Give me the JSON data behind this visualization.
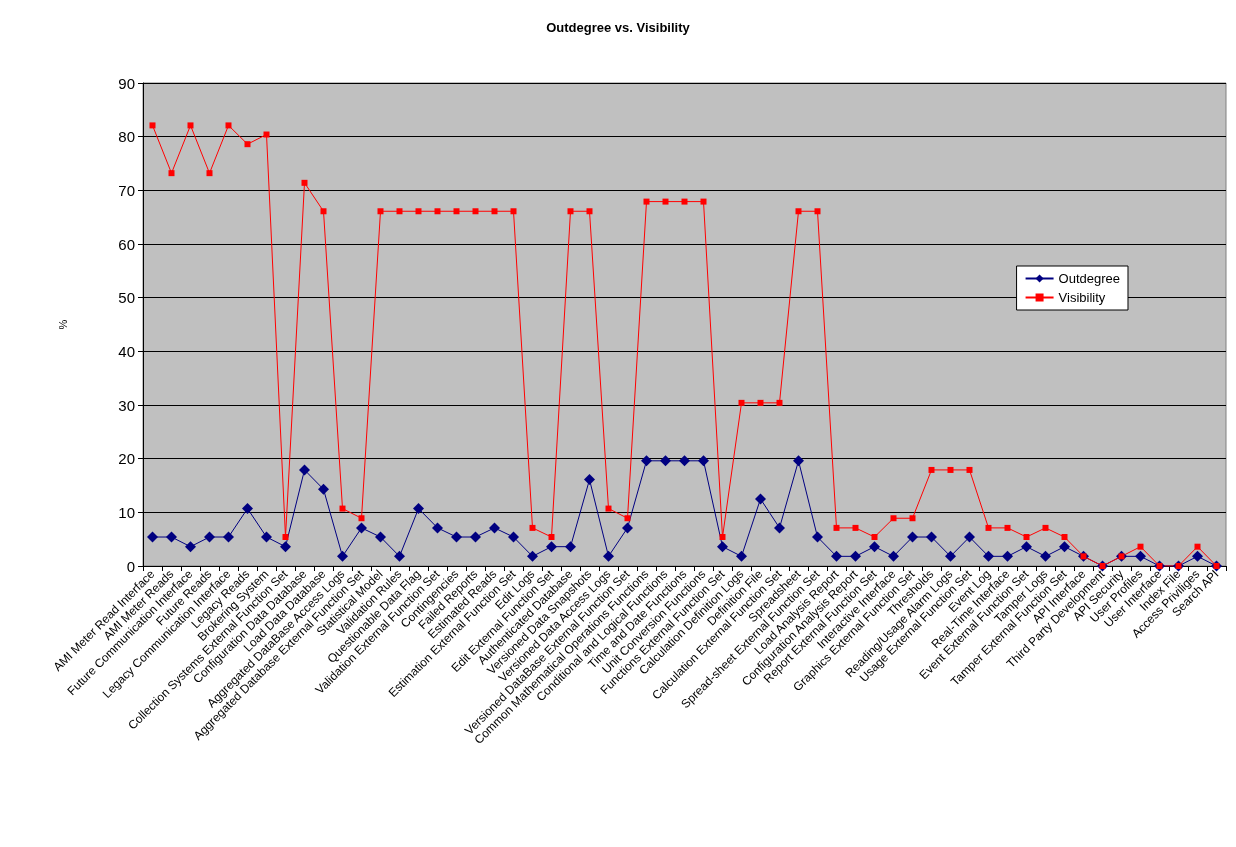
{
  "chart_data": {
    "type": "line",
    "title": "Outdegree vs. Visibility",
    "ylabel": "%",
    "categories": [
      "AMI Meter Read Interface",
      "AMI Meter Reads",
      "Future Communication Interface",
      "Future Reads",
      "Legacy Communication Interface",
      "Legacy Reads",
      "Brokering System",
      "Collection Systems External Function Set",
      "Configuration Data Database",
      "Load Data Database",
      "Aggregated DataBase Access Logs",
      "Aggregated Database External Function Set",
      "Statistical Model",
      "Validation Rules",
      "Questionable Data Flag",
      "Validation External Function Set",
      "Contingencies",
      "Failed Reports",
      "Estimated Reads",
      "Estimation External Function Set",
      "Edit Logs",
      "Edit External Function Set",
      "Authenticated Database",
      "Versioned Data Snapshots",
      "Versioned Data Access Logs",
      "Versioned DataBase External Function Set",
      "Common Mathematical Operations Functions",
      "Conditional and Logical Functions",
      "Time and Date Functions",
      "Unit Conversion Functions",
      "Functions External Function Set",
      "Calculation Definition Logs",
      "Definition File",
      "Calculation External Function Set",
      "Spreadsheet",
      "Spread-sheet External Function Set",
      "Load Analysis Report",
      "Configuration Analysis Report",
      "Report External Function Set",
      "Interactive Interface",
      "Graphics External Function Set",
      "Thresholds",
      "Reading/Usage Alarm Logs",
      "Usage External Function Set",
      "Event Log",
      "Real-Time Interface",
      "Event External Function Set",
      "Tamper Logs",
      "Tamper External Function Set",
      "API Interface",
      "Third Party Development",
      "API Security",
      "User Profiles",
      "User Interface",
      "Index File",
      "Access Priviliges",
      "Search API"
    ],
    "series": [
      {
        "name": "Outdegree",
        "color": "#000080",
        "marker": "diamond",
        "values": [
          5.4,
          5.4,
          3.6,
          5.4,
          5.4,
          10.7,
          5.4,
          3.6,
          17.9,
          14.3,
          1.8,
          7.1,
          5.4,
          1.8,
          10.7,
          7.1,
          5.4,
          5.4,
          7.1,
          5.4,
          1.8,
          3.6,
          3.6,
          16.1,
          1.8,
          7.1,
          19.6,
          19.6,
          19.6,
          19.6,
          3.6,
          1.8,
          12.5,
          7.1,
          19.6,
          5.4,
          1.8,
          1.8,
          3.6,
          1.8,
          5.4,
          5.4,
          1.8,
          5.4,
          1.8,
          1.8,
          3.6,
          1.8,
          3.6,
          1.8,
          0,
          1.8,
          1.8,
          0,
          0,
          1.8,
          0
        ]
      },
      {
        "name": "Visibility",
        "color": "#ff0000",
        "marker": "square",
        "values": [
          82.1,
          73.2,
          82.1,
          73.2,
          82.1,
          78.6,
          80.4,
          5.4,
          71.4,
          66.1,
          10.7,
          8.9,
          66.1,
          66.1,
          66.1,
          66.1,
          66.1,
          66.1,
          66.1,
          66.1,
          7.1,
          5.4,
          66.1,
          66.1,
          10.7,
          8.9,
          67.9,
          67.9,
          67.9,
          67.9,
          5.4,
          30.4,
          30.4,
          30.4,
          66.1,
          66.1,
          7.1,
          7.1,
          5.4,
          8.9,
          8.9,
          17.9,
          17.9,
          17.9,
          7.1,
          7.1,
          5.4,
          7.1,
          5.4,
          1.8,
          0,
          1.8,
          3.6,
          0,
          0,
          3.6,
          0
        ]
      }
    ],
    "ylim": [
      0,
      90
    ],
    "yticks": [
      0,
      10,
      20,
      30,
      40,
      50,
      60,
      70,
      80,
      90
    ],
    "grid": "y",
    "legend": "right"
  }
}
